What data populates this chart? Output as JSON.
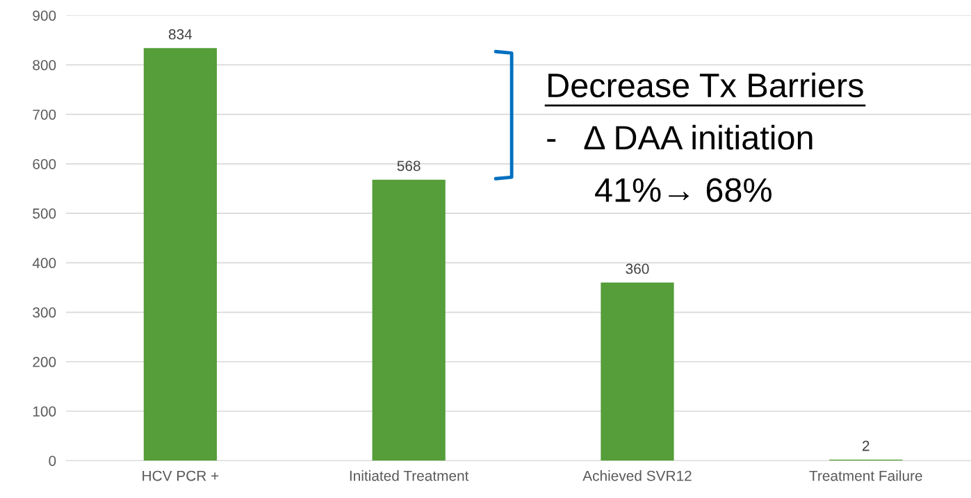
{
  "chart_data": {
    "type": "bar",
    "categories": [
      "HCV PCR +",
      "Initiated Treatment",
      "Achieved SVR12",
      "Treatment Failure"
    ],
    "values": [
      834,
      568,
      360,
      2
    ],
    "color": "#559e3a",
    "ylim": [
      0,
      900
    ],
    "yticks": [
      0,
      100,
      200,
      300,
      400,
      500,
      600,
      700,
      800,
      900
    ],
    "grid": "y",
    "data_labels": true,
    "annotations": [
      "Decrease Tx Barriers",
      "-   Δ DAA initiation",
      "41%→ 68%"
    ]
  }
}
